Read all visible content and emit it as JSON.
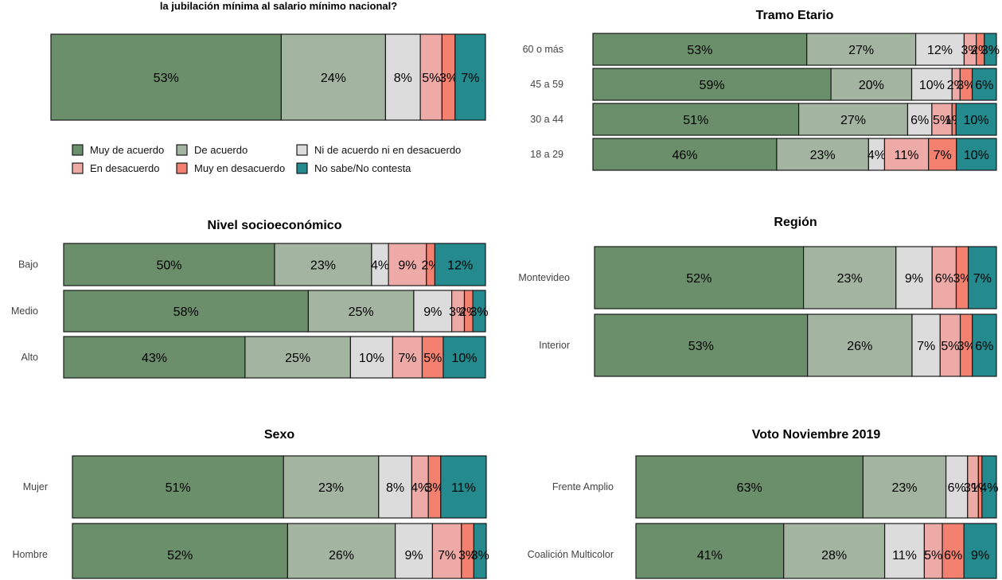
{
  "categories": [
    "Muy de acuerdo",
    "De acuerdo",
    "Ni de acuerdo ni en desacuerdo",
    "En desacuerdo",
    "Muy en desacuerdo",
    "No sabe/No contesta"
  ],
  "colors": [
    "#6b8e6b",
    "#a3b5a0",
    "#dcdcdc",
    "#eeaaa6",
    "#f4806f",
    "#248a8d"
  ],
  "chart_data": [
    {
      "type": "bar",
      "stacked": "100%",
      "orientation": "horizontal",
      "title_lines": [
        "la jubilación mínima al salario mínimo nacional?"
      ],
      "rows": [
        {
          "label": "",
          "values": [
            53,
            24,
            8,
            5,
            3,
            7
          ]
        }
      ]
    },
    {
      "type": "bar",
      "stacked": "100%",
      "orientation": "horizontal",
      "title": "Tramo Etario",
      "rows": [
        {
          "label": "60 o más",
          "values": [
            53,
            27,
            12,
            3,
            2,
            3
          ]
        },
        {
          "label": "45 a 59",
          "values": [
            59,
            20,
            10,
            2,
            3,
            6
          ]
        },
        {
          "label": "30 a 44",
          "values": [
            51,
            27,
            6,
            5,
            1,
            10
          ]
        },
        {
          "label": "18 a 29",
          "values": [
            46,
            23,
            4,
            11,
            7,
            10
          ]
        }
      ]
    },
    {
      "type": "bar",
      "stacked": "100%",
      "orientation": "horizontal",
      "title": "Nivel socioeconómico",
      "rows": [
        {
          "label": "Bajo",
          "values": [
            50,
            23,
            4,
            9,
            2,
            12
          ]
        },
        {
          "label": "Medio",
          "values": [
            58,
            25,
            9,
            3,
            2,
            3
          ]
        },
        {
          "label": "Alto",
          "values": [
            43,
            25,
            10,
            7,
            5,
            10
          ]
        }
      ]
    },
    {
      "type": "bar",
      "stacked": "100%",
      "orientation": "horizontal",
      "title": "Región",
      "rows": [
        {
          "label": "Montevideo",
          "values": [
            52,
            23,
            9,
            6,
            3,
            7
          ]
        },
        {
          "label": "Interior",
          "values": [
            53,
            26,
            7,
            5,
            3,
            6
          ]
        }
      ]
    },
    {
      "type": "bar",
      "stacked": "100%",
      "orientation": "horizontal",
      "title": "Sexo",
      "rows": [
        {
          "label": "Mujer",
          "values": [
            51,
            23,
            8,
            4,
            3,
            11
          ]
        },
        {
          "label": "Hombre",
          "values": [
            52,
            26,
            9,
            7,
            3,
            3
          ]
        }
      ]
    },
    {
      "type": "bar",
      "stacked": "100%",
      "orientation": "horizontal",
      "title": "Voto Noviembre 2019",
      "rows": [
        {
          "label": "Frente Amplio",
          "values": [
            63,
            23,
            6,
            3,
            1,
            4
          ]
        },
        {
          "label": "Coalición Multicolor",
          "values": [
            41,
            28,
            11,
            5,
            6,
            9
          ]
        }
      ]
    }
  ]
}
